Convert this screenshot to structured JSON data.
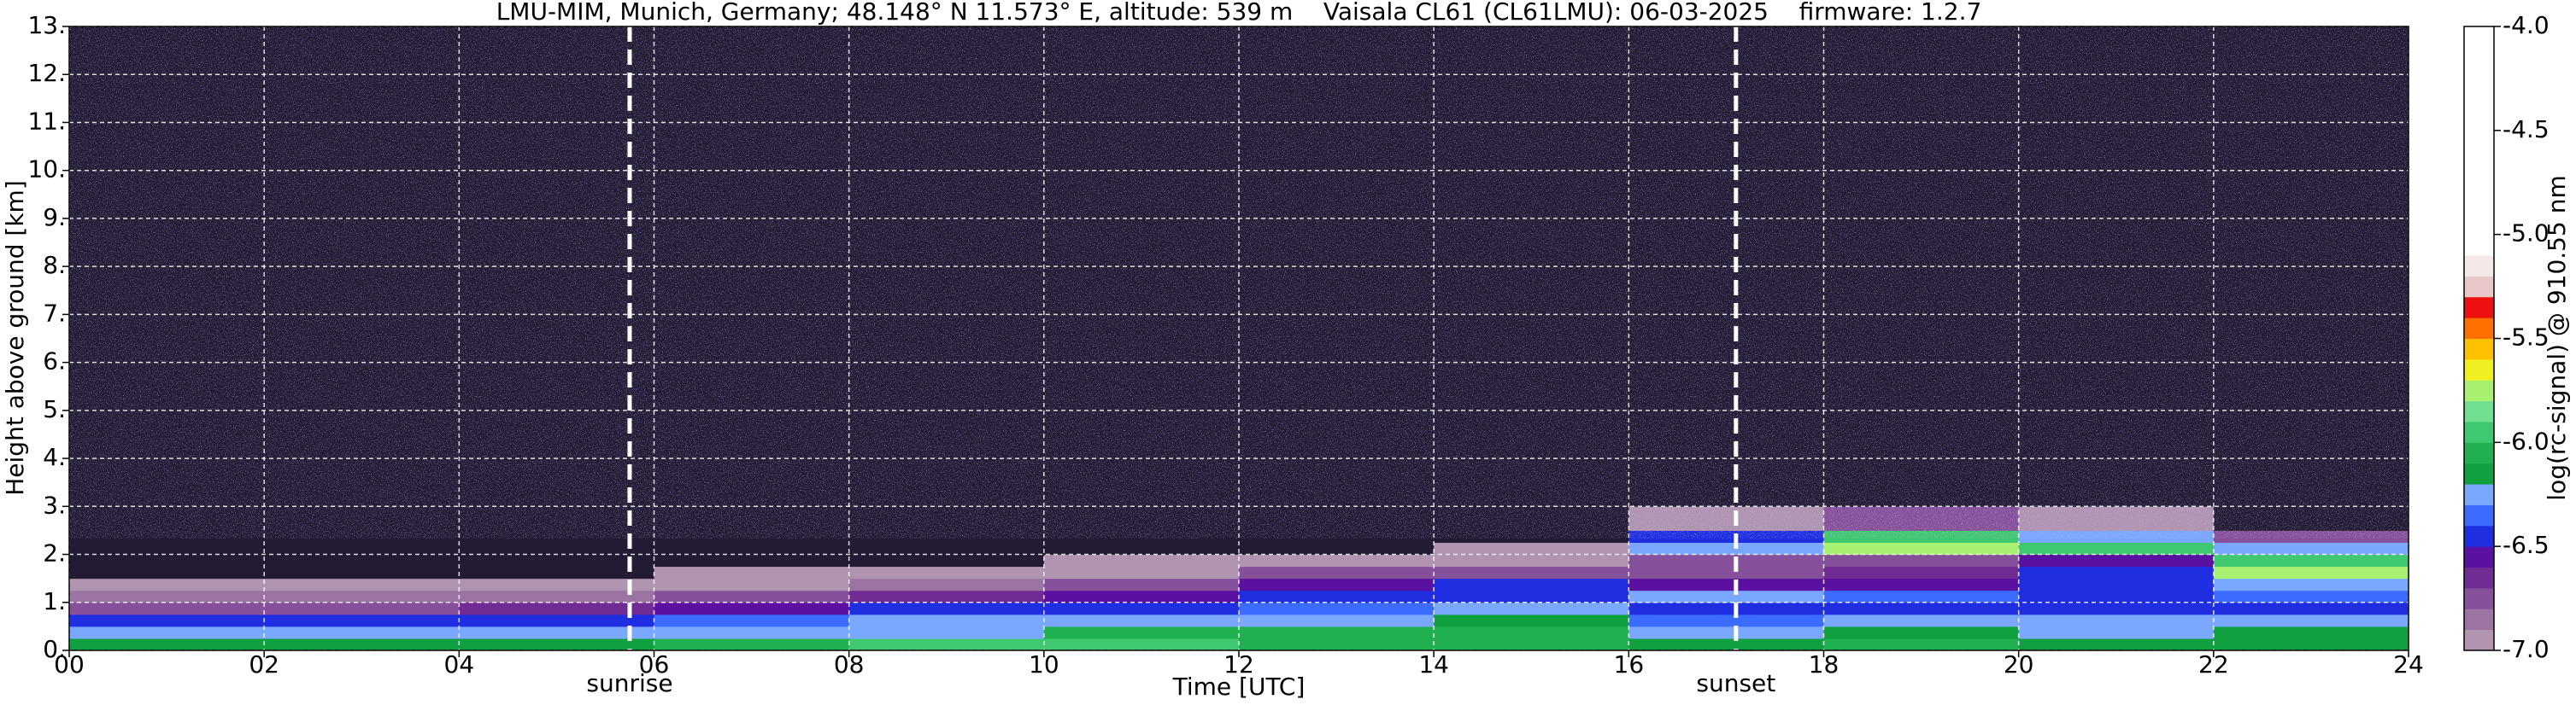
{
  "chart_data": {
    "type": "heatmap",
    "title": "LMU-MIM, Munich, Germany; 48.148° N 11.573° E, altitude: 539 m    Vaisala CL61 (CL61LMU): 06-03-2025    firmware: 1.2.7",
    "x_label": "Time [UTC]",
    "y_label": "Height above ground [km]",
    "colorbar_label": "log(rc-signal) @ 910.55 nm",
    "xlim": [
      0,
      24
    ],
    "ylim": [
      0,
      13
    ],
    "xticks": [
      {
        "value": 0,
        "label": "00"
      },
      {
        "value": 2,
        "label": "02"
      },
      {
        "value": 4,
        "label": "04"
      },
      {
        "value": 6,
        "label": "06"
      },
      {
        "value": 8,
        "label": "08"
      },
      {
        "value": 10,
        "label": "10"
      },
      {
        "value": 12,
        "label": "12"
      },
      {
        "value": 14,
        "label": "14"
      },
      {
        "value": 16,
        "label": "16"
      },
      {
        "value": 18,
        "label": "18"
      },
      {
        "value": 20,
        "label": "20"
      },
      {
        "value": 22,
        "label": "22"
      },
      {
        "value": 24,
        "label": "24"
      }
    ],
    "yticks": [
      {
        "value": 0,
        "label": "0."
      },
      {
        "value": 1,
        "label": "1."
      },
      {
        "value": 2,
        "label": "2."
      },
      {
        "value": 3,
        "label": "3."
      },
      {
        "value": 4,
        "label": "4."
      },
      {
        "value": 5,
        "label": "5."
      },
      {
        "value": 6,
        "label": "6."
      },
      {
        "value": 7,
        "label": "7."
      },
      {
        "value": 8,
        "label": "8."
      },
      {
        "value": 9,
        "label": "9."
      },
      {
        "value": 10,
        "label": "10."
      },
      {
        "value": 11,
        "label": "11."
      },
      {
        "value": 12,
        "label": "12."
      },
      {
        "value": 13,
        "label": "13."
      }
    ],
    "grid": true,
    "x_edges": [
      0,
      2,
      4,
      6,
      8,
      10,
      12,
      14,
      16,
      18,
      20,
      22,
      24
    ],
    "y_edges": [
      0,
      0.25,
      0.5,
      0.75,
      1,
      1.25,
      1.5,
      1.75,
      2,
      2.25,
      2.5,
      3,
      13
    ],
    "z": [
      [
        -6.15,
        -6.15,
        -6.15,
        -6.1,
        -6.0,
        -5.9,
        -6.05,
        -6.1,
        -6.15,
        -6.1,
        -6.15,
        -6.15
      ],
      [
        -6.3,
        -6.3,
        -6.3,
        -6.25,
        -6.3,
        -6.1,
        -6.1,
        -6.05,
        -6.2,
        -6.15,
        -6.2,
        -6.15
      ],
      [
        -6.45,
        -6.4,
        -6.45,
        -6.35,
        -6.3,
        -6.3,
        -6.25,
        -6.15,
        -6.35,
        -6.3,
        -6.3,
        -6.3
      ],
      [
        -6.7,
        -6.7,
        -6.65,
        -6.6,
        -6.45,
        -6.4,
        -6.35,
        -6.3,
        -6.5,
        -6.45,
        -6.5,
        -6.45
      ],
      [
        -6.85,
        -6.85,
        -6.85,
        -6.75,
        -6.65,
        -6.6,
        -6.45,
        -6.4,
        -6.3,
        -6.35,
        -6.4,
        -6.35
      ],
      [
        -6.95,
        -6.95,
        -6.95,
        -6.9,
        -6.85,
        -6.75,
        -6.55,
        -6.5,
        -6.6,
        -6.55,
        -6.45,
        -6.2
      ],
      [
        -7.05,
        -7.05,
        -7.05,
        -7.0,
        -6.95,
        -6.9,
        -6.75,
        -6.7,
        -6.7,
        -6.65,
        -6.5,
        -5.8
      ],
      [
        -7.1,
        -7.1,
        -7.1,
        -7.1,
        -7.05,
        -7.0,
        -6.95,
        -6.9,
        -6.75,
        -6.7,
        -6.6,
        -5.9
      ],
      [
        -7.15,
        -7.15,
        -7.15,
        -7.15,
        -7.1,
        -7.1,
        -7.05,
        -7.0,
        -6.2,
        -5.8,
        -6.0,
        -6.2
      ],
      [
        -7.2,
        -7.2,
        -7.2,
        -7.2,
        -7.2,
        -7.2,
        -7.1,
        -7.1,
        -6.4,
        -5.9,
        -6.3,
        -6.7
      ],
      [
        -7.2,
        -7.2,
        -7.2,
        -7.2,
        -7.2,
        -7.2,
        -7.2,
        -7.2,
        -6.9,
        -6.8,
        -7.0,
        -7.1
      ],
      [
        -7.3,
        -7.3,
        -7.3,
        -7.3,
        -7.3,
        -7.3,
        -7.3,
        -7.3,
        -7.3,
        -7.3,
        -7.3,
        -7.3
      ]
    ],
    "clim": [
      -7,
      -4
    ],
    "colors": [
      "#b094b0",
      "#9c74a4",
      "#86509a",
      "#702c92",
      "#5a10a0",
      "#1e2ee0",
      "#3c6cff",
      "#7aa8ff",
      "#10a040",
      "#20b050",
      "#40c870",
      "#70e090",
      "#a8f070",
      "#f0f020",
      "#ffc000",
      "#ff7000",
      "#ee1010",
      "#e8c8c8",
      "#f4e8e8",
      "#ffffff",
      "#ffffff",
      "#ffffff",
      "#ffffff",
      "#ffffff",
      "#ffffff",
      "#ffffff",
      "#ffffff",
      "#ffffff",
      "#ffffff",
      "#ffffff"
    ],
    "under_color": "#231a33",
    "colorbar_ticks": [
      {
        "value": -4,
        "label": "-4.0"
      },
      {
        "value": -4.5,
        "label": "-4.5"
      },
      {
        "value": -5,
        "label": "-5.0"
      },
      {
        "value": -5.5,
        "label": "-5.5"
      },
      {
        "value": -6,
        "label": "-6.0"
      },
      {
        "value": -6.5,
        "label": "-6.5"
      },
      {
        "value": -7,
        "label": "-7.0"
      }
    ],
    "vlines": [
      {
        "x": 5.75,
        "label": "sunrise"
      },
      {
        "x": 17.1,
        "label": "sunset"
      }
    ]
  }
}
